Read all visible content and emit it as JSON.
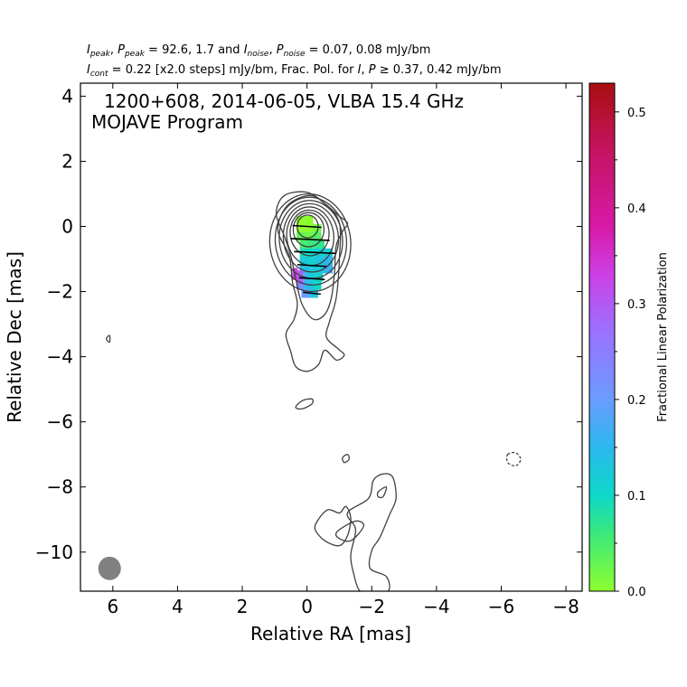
{
  "header": {
    "line1": {
      "i_sym": "I",
      "i_sub": "peak",
      "sep1": ", ",
      "p_sym": "P",
      "p_sub": "peak",
      "mid": " = 92.6, 1.7 and ",
      "i2_sym": "I",
      "i2_sub": "noise",
      "sep2": ", ",
      "p2_sym": "P",
      "p2_sub": "noise",
      "tail": " = 0.07, 0.08 mJy/bm"
    },
    "line2": {
      "i_sym": "I",
      "i_sub": "cont",
      "mid": " = 0.22 [x2.0 steps] mJy/bm, Frac. Pol. for ",
      "i2_sym": "I",
      "sep": ", ",
      "p_sym": "P",
      "tail": " ≥ 0.37, 0.42 mJy/bm"
    }
  },
  "chart_data": {
    "type": "contour",
    "title": "1200+608, 2014-06-05, VLBA 15.4 GHz",
    "subtitle": "MOJAVE Program",
    "xlabel": "Relative RA [mas]",
    "ylabel": "Relative Dec [mas]",
    "xlim": [
      7.0,
      -8.5
    ],
    "ylim": [
      -11.2,
      4.4
    ],
    "x_ticks": [
      6,
      4,
      2,
      0,
      -2,
      -4,
      -6,
      -8
    ],
    "x_tick_labels": [
      "6",
      "4",
      "2",
      "0",
      "−2",
      "−4",
      "−6",
      "−8"
    ],
    "y_ticks": [
      4,
      2,
      0,
      -2,
      -4,
      -6,
      -8,
      -10
    ],
    "y_tick_labels": [
      "4",
      "2",
      "0",
      "−2",
      "−4",
      "−6",
      "−8",
      "−10"
    ],
    "grid": false,
    "colorbar": {
      "label": "Fractional Linear Polarization",
      "range": [
        0.0,
        0.53
      ],
      "ticks": [
        0.0,
        0.1,
        0.2,
        0.3,
        0.4,
        0.5
      ],
      "tick_labels": [
        "0.0",
        "0.1",
        "0.2",
        "0.3",
        "0.4",
        "0.5"
      ],
      "stops": [
        {
          "v": 0.0,
          "color": "#8cff2e"
        },
        {
          "v": 0.06,
          "color": "#3ae87c"
        },
        {
          "v": 0.1,
          "color": "#0ed8c8"
        },
        {
          "v": 0.15,
          "color": "#2bb8ee"
        },
        {
          "v": 0.2,
          "color": "#6a9cff"
        },
        {
          "v": 0.27,
          "color": "#9a72ff"
        },
        {
          "v": 0.33,
          "color": "#cc40e6"
        },
        {
          "v": 0.38,
          "color": "#d81aa8"
        },
        {
          "v": 0.45,
          "color": "#c8146a"
        },
        {
          "v": 0.53,
          "color": "#a80f12"
        }
      ]
    },
    "contour_color": "#404040",
    "core_contours": [
      {
        "ra": -0.1,
        "dec": -0.5,
        "w": 2.5,
        "h": 3.0,
        "tilt": -6
      },
      {
        "ra": -0.12,
        "dec": -0.45,
        "w": 2.2,
        "h": 2.7,
        "tilt": -6
      },
      {
        "ra": -0.12,
        "dec": -0.4,
        "w": 1.95,
        "h": 2.4,
        "tilt": -6
      },
      {
        "ra": -0.12,
        "dec": -0.35,
        "w": 1.7,
        "h": 2.1,
        "tilt": -6
      },
      {
        "ra": -0.1,
        "dec": -0.3,
        "w": 1.45,
        "h": 1.8,
        "tilt": -6
      },
      {
        "ra": -0.08,
        "dec": -0.2,
        "w": 1.2,
        "h": 1.4,
        "tilt": -4
      },
      {
        "ra": -0.05,
        "dec": -0.1,
        "w": 0.95,
        "h": 1.05,
        "tilt": 0
      },
      {
        "ra": -0.02,
        "dec": 0.0,
        "w": 0.65,
        "h": 0.7,
        "tilt": 0
      }
    ],
    "outer_contours": [
      [
        [
          0.7,
          -0.3
        ],
        [
          0.95,
          0.4
        ],
        [
          0.7,
          0.95
        ],
        [
          0.0,
          1.05
        ],
        [
          -0.55,
          0.7
        ],
        [
          -0.95,
          0.35
        ],
        [
          -1.25,
          0.1
        ],
        [
          -1.1,
          -0.15
        ],
        [
          -0.9,
          -0.6
        ],
        [
          -0.85,
          -1.4
        ],
        [
          -0.75,
          -2.2
        ],
        [
          -0.55,
          -2.7
        ],
        [
          -0.2,
          -2.85
        ],
        [
          0.15,
          -2.4
        ],
        [
          0.35,
          -1.6
        ],
        [
          0.5,
          -0.9
        ]
      ],
      [
        [
          0.9,
          -0.1
        ],
        [
          0.6,
          0.65
        ],
        [
          -0.1,
          0.95
        ],
        [
          -0.6,
          0.65
        ],
        [
          -1.0,
          0.1
        ],
        [
          -1.0,
          -1.0
        ],
        [
          -0.9,
          -2.2
        ],
        [
          -0.7,
          -2.9
        ],
        [
          -0.6,
          -3.4
        ],
        [
          -0.95,
          -3.75
        ],
        [
          -1.15,
          -3.95
        ],
        [
          -0.9,
          -4.1
        ],
        [
          -0.55,
          -3.8
        ],
        [
          -0.35,
          -4.25
        ],
        [
          0.0,
          -4.45
        ],
        [
          0.35,
          -4.3
        ],
        [
          0.5,
          -3.85
        ],
        [
          0.65,
          -3.3
        ],
        [
          0.4,
          -2.85
        ],
        [
          0.3,
          -2.35
        ],
        [
          0.45,
          -1.7
        ],
        [
          0.55,
          -0.9
        ]
      ],
      [
        [
          0.35,
          -5.55
        ],
        [
          0.15,
          -5.35
        ],
        [
          -0.15,
          -5.3
        ],
        [
          -0.15,
          -5.45
        ],
        [
          0.15,
          -5.6
        ]
      ],
      [
        [
          -1.25,
          -7.0
        ],
        [
          -1.3,
          -7.15
        ],
        [
          -1.15,
          -7.25
        ],
        [
          -1.1,
          -7.1
        ]
      ],
      [
        [
          -1.35,
          -10.1
        ],
        [
          -1.5,
          -9.3
        ],
        [
          -1.25,
          -8.8
        ],
        [
          -1.9,
          -8.35
        ],
        [
          -2.05,
          -7.8
        ],
        [
          -2.35,
          -7.6
        ],
        [
          -2.65,
          -7.7
        ],
        [
          -2.75,
          -8.35
        ],
        [
          -2.55,
          -8.85
        ],
        [
          -2.25,
          -9.55
        ],
        [
          -2.0,
          -9.95
        ],
        [
          -1.95,
          -10.5
        ],
        [
          -2.45,
          -10.75
        ],
        [
          -2.5,
          -11.2
        ],
        [
          -1.85,
          -11.25
        ],
        [
          -1.6,
          -11.15
        ],
        [
          -1.45,
          -10.7
        ]
      ],
      [
        [
          -0.95,
          -9.35
        ],
        [
          -1.5,
          -9.05
        ],
        [
          -1.75,
          -9.2
        ],
        [
          -1.35,
          -9.65
        ],
        [
          -0.95,
          -9.55
        ]
      ],
      [
        [
          -2.2,
          -8.15
        ],
        [
          -2.45,
          -8.0
        ],
        [
          -2.35,
          -8.3
        ],
        [
          -2.2,
          -8.3
        ]
      ],
      [
        [
          -0.35,
          -9.0
        ],
        [
          -0.65,
          -8.7
        ],
        [
          -1.0,
          -8.8
        ],
        [
          -1.2,
          -8.6
        ],
        [
          -1.35,
          -8.95
        ],
        [
          -1.25,
          -9.5
        ],
        [
          -1.0,
          -9.8
        ],
        [
          -0.55,
          -9.65
        ],
        [
          -0.25,
          -9.3
        ]
      ],
      [
        [
          6.2,
          -3.45
        ],
        [
          6.1,
          -3.55
        ],
        [
          6.1,
          -3.35
        ]
      ]
    ],
    "negative_contours": [
      [
        [
          -6.2,
          -7.0
        ],
        [
          -6.45,
          -6.95
        ],
        [
          -6.6,
          -7.15
        ],
        [
          -6.45,
          -7.35
        ],
        [
          -6.2,
          -7.25
        ]
      ]
    ],
    "polarization_cells": [
      {
        "ra": 0.2,
        "dec": 0.2,
        "w": 0.25,
        "h": 0.25,
        "frac": 0.0
      },
      {
        "ra": -0.05,
        "dec": 0.2,
        "w": 0.25,
        "h": 0.25,
        "frac": 0.0
      },
      {
        "ra": 0.2,
        "dec": -0.05,
        "w": 0.25,
        "h": 0.25,
        "frac": 0.0
      },
      {
        "ra": -0.05,
        "dec": -0.05,
        "w": 0.25,
        "h": 0.25,
        "frac": 0.0
      },
      {
        "ra": -0.3,
        "dec": -0.05,
        "w": 0.25,
        "h": 0.25,
        "frac": 0.02
      },
      {
        "ra": 0.2,
        "dec": -0.3,
        "w": 0.25,
        "h": 0.25,
        "frac": 0.03
      },
      {
        "ra": -0.05,
        "dec": -0.3,
        "w": 0.25,
        "h": 0.25,
        "frac": 0.02
      },
      {
        "ra": -0.3,
        "dec": -0.3,
        "w": 0.25,
        "h": 0.25,
        "frac": 0.04
      },
      {
        "ra": 0.1,
        "dec": -0.55,
        "w": 0.25,
        "h": 0.25,
        "frac": 0.05
      },
      {
        "ra": -0.15,
        "dec": -0.55,
        "w": 0.25,
        "h": 0.25,
        "frac": 0.06
      },
      {
        "ra": -0.4,
        "dec": -0.55,
        "w": 0.25,
        "h": 0.25,
        "frac": 0.07
      },
      {
        "ra": 0.1,
        "dec": -0.8,
        "w": 0.25,
        "h": 0.25,
        "frac": 0.09
      },
      {
        "ra": -0.15,
        "dec": -0.8,
        "w": 0.25,
        "h": 0.25,
        "frac": 0.1
      },
      {
        "ra": -0.4,
        "dec": -0.8,
        "w": 0.25,
        "h": 0.25,
        "frac": 0.11
      },
      {
        "ra": -0.65,
        "dec": -0.8,
        "w": 0.25,
        "h": 0.25,
        "frac": 0.12
      },
      {
        "ra": 0.1,
        "dec": -1.05,
        "w": 0.25,
        "h": 0.25,
        "frac": 0.12
      },
      {
        "ra": -0.15,
        "dec": -1.05,
        "w": 0.25,
        "h": 0.25,
        "frac": 0.11
      },
      {
        "ra": -0.4,
        "dec": -1.05,
        "w": 0.25,
        "h": 0.25,
        "frac": 0.13
      },
      {
        "ra": -0.65,
        "dec": -1.05,
        "w": 0.25,
        "h": 0.25,
        "frac": 0.15
      },
      {
        "ra": 0.1,
        "dec": -1.3,
        "w": 0.25,
        "h": 0.25,
        "frac": 0.14
      },
      {
        "ra": -0.15,
        "dec": -1.3,
        "w": 0.25,
        "h": 0.25,
        "frac": 0.12
      },
      {
        "ra": -0.4,
        "dec": -1.3,
        "w": 0.25,
        "h": 0.25,
        "frac": 0.12
      },
      {
        "ra": -0.65,
        "dec": -1.3,
        "w": 0.25,
        "h": 0.25,
        "frac": 0.16
      },
      {
        "ra": 0.15,
        "dec": -1.55,
        "w": 0.25,
        "h": 0.25,
        "frac": 0.19
      },
      {
        "ra": -0.1,
        "dec": -1.55,
        "w": 0.25,
        "h": 0.25,
        "frac": 0.13
      },
      {
        "ra": -0.35,
        "dec": -1.55,
        "w": 0.25,
        "h": 0.25,
        "frac": 0.11
      },
      {
        "ra": 0.2,
        "dec": -1.8,
        "w": 0.25,
        "h": 0.25,
        "frac": 0.22
      },
      {
        "ra": -0.05,
        "dec": -1.8,
        "w": 0.25,
        "h": 0.25,
        "frac": 0.14
      },
      {
        "ra": -0.3,
        "dec": -1.8,
        "w": 0.25,
        "h": 0.25,
        "frac": 0.1
      },
      {
        "ra": 0.05,
        "dec": -2.05,
        "w": 0.25,
        "h": 0.25,
        "frac": 0.2
      },
      {
        "ra": -0.2,
        "dec": -2.05,
        "w": 0.25,
        "h": 0.25,
        "frac": 0.13
      },
      {
        "ra": 0.38,
        "dec": -1.45,
        "w": 0.15,
        "h": 0.35,
        "frac": 0.33
      },
      {
        "ra": 0.22,
        "dec": -1.55,
        "w": 0.15,
        "h": 0.4,
        "frac": 0.3
      }
    ],
    "evpa_ticks": [
      {
        "ra": 0.0,
        "dec": 0.0,
        "len": 0.9
      },
      {
        "ra": -0.1,
        "dec": -0.4,
        "len": 1.2
      },
      {
        "ra": -0.25,
        "dec": -0.8,
        "len": 1.3
      },
      {
        "ra": -0.15,
        "dec": -1.2,
        "len": 0.9
      },
      {
        "ra": -0.15,
        "dec": -1.6,
        "len": 0.8
      },
      {
        "ra": -0.15,
        "dec": -2.05,
        "len": 0.55
      }
    ],
    "beam": {
      "ra": 6.1,
      "dec": -10.5,
      "w": 0.7,
      "h": 0.72,
      "color": "#808080"
    }
  }
}
